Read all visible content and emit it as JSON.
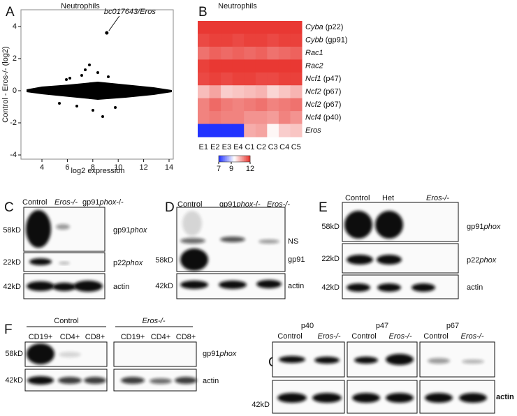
{
  "panel_a": {
    "letter": "A",
    "title": "Neutrophils",
    "xlabel": "log2 expression",
    "ylabel": "Control - Eros-/- (log2)",
    "xlim": [
      2.35,
      14.33
    ],
    "ylim": [
      -4.26,
      5.04
    ],
    "xticks": [
      4,
      6,
      8,
      10,
      12,
      14
    ],
    "yticks": [
      -4,
      -2,
      0,
      2,
      4
    ],
    "highlight": {
      "label": "bc017643/Eros",
      "x": 9.1,
      "y": 3.6
    }
  },
  "panel_b": {
    "letter": "B",
    "title": "Neutrophils",
    "columns": [
      "E1",
      "E2",
      "E3",
      "E4",
      "C1",
      "C2",
      "C3",
      "C4",
      "C5"
    ],
    "rows": [
      {
        "gene": "Cyba",
        "protein": "(p22)"
      },
      {
        "gene": "Cybb",
        "protein": "(gp91)"
      },
      {
        "gene": "Rac1"
      },
      {
        "gene": "Rac2"
      },
      {
        "gene": "Ncf1",
        "protein": "(p47)"
      },
      {
        "gene": "Ncf2",
        "protein": "(p67)"
      },
      {
        "gene": "Ncf2",
        "protein": "(p67)"
      },
      {
        "gene": "Ncf4",
        "protein": "(p40)"
      },
      {
        "gene": "Eros"
      }
    ],
    "values": [
      [
        11.9,
        11.9,
        11.9,
        11.9,
        11.9,
        11.9,
        11.9,
        11.9,
        11.9
      ],
      [
        11.7,
        11.8,
        11.8,
        11.7,
        11.8,
        11.8,
        11.7,
        11.8,
        11.8
      ],
      [
        11.2,
        11.4,
        11.3,
        11.4,
        11.3,
        11.4,
        11.2,
        11.3,
        11.4
      ],
      [
        11.8,
        11.9,
        11.9,
        11.9,
        11.9,
        11.9,
        11.9,
        11.9,
        11.9
      ],
      [
        11.7,
        11.8,
        11.7,
        11.8,
        11.8,
        11.7,
        11.7,
        11.8,
        11.8
      ],
      [
        10.3,
        10.6,
        10.1,
        10.2,
        10.3,
        10.4,
        10.0,
        10.2,
        10.4
      ],
      [
        11.0,
        11.3,
        11.1,
        11.0,
        11.1,
        11.2,
        11.0,
        11.1,
        11.2
      ],
      [
        11.0,
        11.1,
        11.0,
        11.0,
        10.8,
        10.8,
        10.7,
        11.0,
        10.8
      ],
      [
        7,
        7,
        7,
        7,
        10.5,
        10.6,
        9.6,
        10.1,
        10.2
      ]
    ],
    "colorbar": {
      "range": [
        7,
        12
      ],
      "ticks": [
        7,
        9,
        12
      ],
      "colors": [
        "#2233ff",
        "#ffffff",
        "#e8302a"
      ]
    }
  },
  "panel_c": {
    "letter": "C",
    "lanes": [
      [
        "Control"
      ],
      [
        "Eros-/-"
      ],
      [
        "gp91",
        "phox",
        "-/-"
      ]
    ],
    "sizes": [
      "58kD",
      "22kD",
      "42kD"
    ],
    "targets": [
      [
        "gp91",
        "phox"
      ],
      [
        "p22",
        "phox"
      ],
      [
        "actin"
      ]
    ]
  },
  "panel_d": {
    "letter": "D",
    "lanes": [
      [
        "Control"
      ],
      [
        "gp91",
        "phox",
        "-/-"
      ],
      [
        "Eros-/-"
      ]
    ],
    "sizes": [
      "58kD",
      "42kD"
    ],
    "targets": [
      [
        "NS"
      ],
      [
        "gp91"
      ],
      [
        "actin"
      ]
    ]
  },
  "panel_e": {
    "letter": "E",
    "lanes": [
      [
        "Control"
      ],
      [
        "Het"
      ],
      [
        "Eros-/-"
      ]
    ],
    "sizes": [
      "58kD",
      "22kD",
      "42kD"
    ],
    "targets": [
      [
        "gp91",
        "phox"
      ],
      [
        "p22",
        "phox"
      ],
      [
        "actin"
      ]
    ]
  },
  "panel_f": {
    "letter": "F",
    "groups": [
      "Control",
      "Eros-/-"
    ],
    "lanes": [
      "CD19+",
      "CD4+",
      "CD8+"
    ],
    "sizes": [
      "58kD",
      "42kD"
    ],
    "targets": [
      [
        "gp91",
        "phox"
      ],
      [
        "actin"
      ]
    ]
  },
  "panel_g": {
    "letter": "G",
    "groups": [
      "p40",
      "p47",
      "p67"
    ],
    "lanes": [
      "Control",
      "Eros-/-"
    ],
    "sizes": [
      "42kD"
    ],
    "targets": [
      "actin"
    ]
  }
}
